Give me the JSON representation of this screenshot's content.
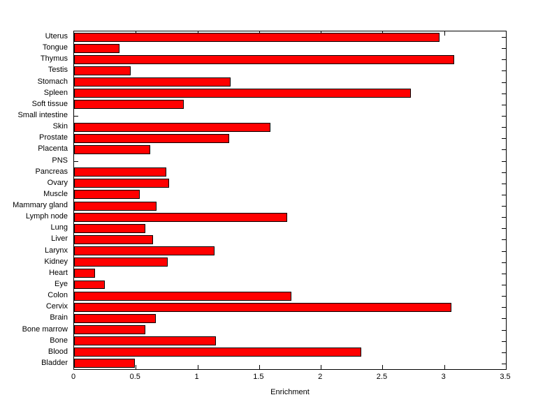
{
  "chart_data": {
    "type": "bar",
    "orientation": "horizontal",
    "title": "",
    "xlabel": "Enrichment",
    "ylabel": "",
    "xlim": [
      0,
      3.5
    ],
    "xticks": [
      0,
      0.5,
      1,
      1.5,
      2,
      2.5,
      3,
      3.5
    ],
    "xtick_labels": [
      "0",
      "0.5",
      "1",
      "1.5",
      "2",
      "2.5",
      "3",
      "3.5"
    ],
    "grid": false,
    "legend": null,
    "bar_color": "#ff0000",
    "bar_edge_color": "#000000",
    "categories_top_to_bottom": [
      "Uterus",
      "Tongue",
      "Thymus",
      "Testis",
      "Stomach",
      "Spleen",
      "Soft tissue",
      "Small intestine",
      "Skin",
      "Prostate",
      "Placenta",
      "PNS",
      "Pancreas",
      "Ovary",
      "Muscle",
      "Mammary gland",
      "Lymph node",
      "Lung",
      "Liver",
      "Larynx",
      "Kidney",
      "Heart",
      "Eye",
      "Colon",
      "Cervix",
      "Brain",
      "Bone marrow",
      "Bone",
      "Blood",
      "Bladder"
    ],
    "values": [
      2.96,
      0.37,
      3.08,
      0.46,
      1.27,
      2.73,
      0.89,
      0,
      1.59,
      1.26,
      0.62,
      0,
      0.75,
      0.77,
      0.53,
      0.67,
      1.73,
      0.58,
      0.64,
      1.14,
      0.76,
      0.17,
      0.25,
      1.76,
      3.06,
      0.66,
      0.58,
      1.15,
      2.33,
      0.49
    ]
  }
}
